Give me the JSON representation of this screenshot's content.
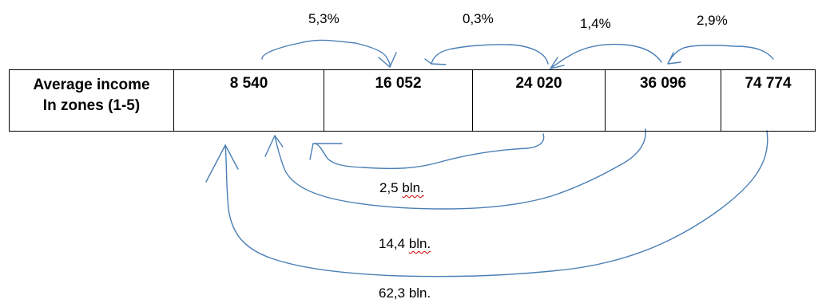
{
  "table": {
    "header_line1": "Average income",
    "header_line2": "In zones (1-5)",
    "zones": [
      "8 540",
      "16 052",
      "24 020",
      "36 096",
      "74 774"
    ]
  },
  "top_transfers": [
    "5,3%",
    "0,3%",
    "1,4%",
    "2,9%"
  ],
  "bottom_transfers": {
    "zone3": {
      "amount": "2,5",
      "unit": "bln."
    },
    "zone4": {
      "amount": "14,4",
      "unit": "bln."
    },
    "zone5": {
      "amount": "62,3",
      "unit": "bln."
    }
  },
  "colors": {
    "arrow": "#4a7fb5",
    "border": "#000000",
    "spellcheck": "#d00000"
  }
}
